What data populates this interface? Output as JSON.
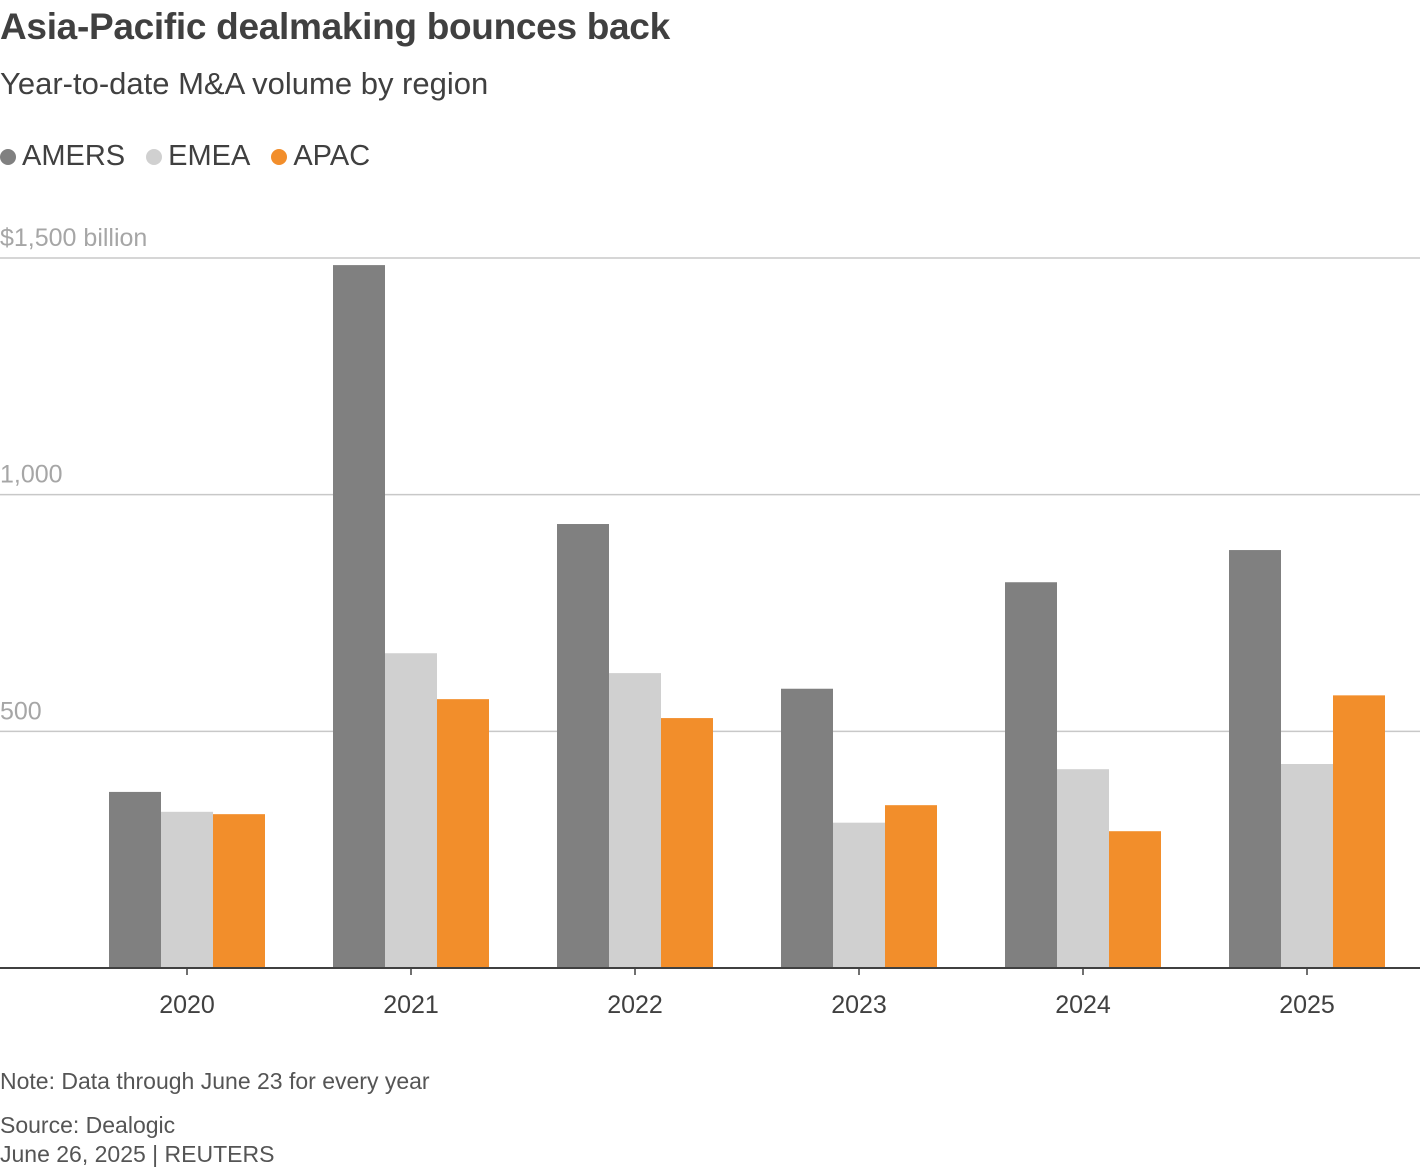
{
  "title": "Asia-Pacific dealmaking bounces back",
  "subtitle": "Year-to-date M&A volume by region",
  "legend": [
    {
      "label": "AMERS",
      "color": "#808080"
    },
    {
      "label": "EMEA",
      "color": "#d0d0d0"
    },
    {
      "label": "APAC",
      "color": "#f28e2b"
    }
  ],
  "footer": {
    "note": "Note: Data through June 23 for every year",
    "source": "Source: Dealogic",
    "date": "June 26, 2025 | REUTERS"
  },
  "chart_data": {
    "type": "bar",
    "title": "Asia-Pacific dealmaking bounces back",
    "subtitle": "Year-to-date M&A volume by region",
    "categories": [
      "2020",
      "2021",
      "2022",
      "2023",
      "2024",
      "2025"
    ],
    "series": [
      {
        "name": "AMERS",
        "color": "#808080",
        "values": [
          372,
          1485,
          938,
          590,
          815,
          883
        ]
      },
      {
        "name": "EMEA",
        "color": "#d0d0d0",
        "values": [
          330,
          665,
          623,
          307,
          420,
          431
        ]
      },
      {
        "name": "APAC",
        "color": "#f28e2b",
        "values": [
          325,
          568,
          528,
          344,
          289,
          576
        ]
      }
    ],
    "yticks": [
      {
        "value": 500,
        "label": "500"
      },
      {
        "value": 1000,
        "label": "1,000"
      },
      {
        "value": 1500,
        "label": "$1,500 billion"
      }
    ],
    "ylim": [
      0,
      1500
    ],
    "xlabel": "",
    "ylabel": "",
    "grid": true,
    "legend_position": "top-left"
  }
}
